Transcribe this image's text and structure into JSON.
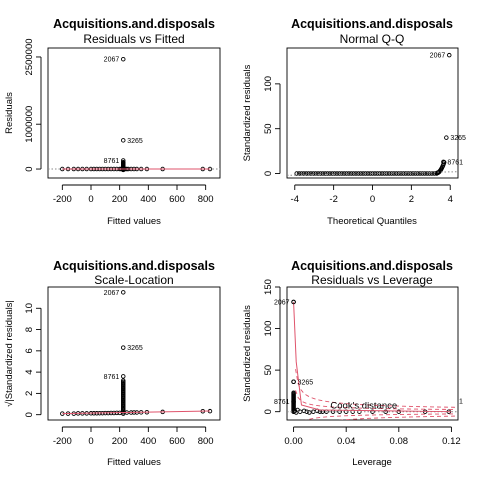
{
  "chart_data": [
    {
      "type": "scatter",
      "title": "Acquisitions.and.disposals",
      "subtitle": "Residuals vs Fitted",
      "xlabel": "Fitted values",
      "ylabel": "Residuals",
      "xlim": [
        -300,
        900
      ],
      "ylim": [
        -200000,
        2700000
      ],
      "xticks": [
        "-200",
        "0",
        "200",
        "400",
        "600",
        "800"
      ],
      "xtick_values": [
        -200,
        0,
        200,
        400,
        600,
        800
      ],
      "yticks": [
        "0",
        "1000000",
        "2500000"
      ],
      "ytick_values": [
        0,
        1000000,
        2500000
      ],
      "grid": false,
      "reference_line": {
        "type": "horizontal",
        "y": 0,
        "style": "dotted",
        "color": "#888888"
      },
      "smooth_color": "#df536b",
      "labeled_points": [
        {
          "label": "2067",
          "x": 225,
          "y": 2450000
        },
        {
          "label": "3265",
          "x": 225,
          "y": 640000
        },
        {
          "label": "8761",
          "x": 225,
          "y": 190000
        }
      ],
      "cluster_x": 225,
      "cluster_y_range": [
        -20000,
        150000
      ],
      "scatter_x": [
        -200,
        -160,
        -120,
        -90,
        -60,
        -30,
        0,
        20,
        40,
        60,
        80,
        100,
        120,
        140,
        160,
        180,
        200,
        210,
        220,
        230,
        240,
        250,
        260,
        280,
        300,
        320,
        350,
        390,
        500,
        780,
        830
      ],
      "scatter_y": [
        0,
        0,
        0,
        0,
        0,
        0,
        0,
        0,
        0,
        0,
        0,
        0,
        0,
        0,
        0,
        0,
        0,
        0,
        0,
        0,
        0,
        0,
        0,
        0,
        0,
        0,
        0,
        0,
        0,
        0,
        0
      ]
    },
    {
      "type": "scatter",
      "title": "Acquisitions.and.disposals",
      "subtitle": "Normal Q-Q",
      "xlabel": "Theoretical Quantiles",
      "ylabel": "Standardized residuals",
      "xlim": [
        -4.4,
        4.4
      ],
      "ylim": [
        -5,
        140
      ],
      "xticks": [
        "-4",
        "-2",
        "0",
        "2",
        "4"
      ],
      "xtick_values": [
        -4,
        -2,
        0,
        2,
        4
      ],
      "yticks": [
        "0",
        "50",
        "100"
      ],
      "ytick_values": [
        0,
        50,
        100
      ],
      "grid": false,
      "reference_line": {
        "type": "diagonal",
        "style": "dotted",
        "color": "#888888"
      },
      "labeled_points": [
        {
          "label": "2067",
          "x": 3.95,
          "y": 132
        },
        {
          "label": "3265",
          "x": 3.8,
          "y": 40
        },
        {
          "label": "8761",
          "x": 3.65,
          "y": 13
        }
      ]
    },
    {
      "type": "scatter",
      "title": "Acquisitions.and.disposals",
      "subtitle": "Scale-Location",
      "xlabel": "Fitted values",
      "ylabel": "√|Standardized residuals|",
      "xlim": [
        -300,
        900
      ],
      "ylim": [
        -0.5,
        12
      ],
      "xticks": [
        "-200",
        "0",
        "200",
        "400",
        "600",
        "800"
      ],
      "xtick_values": [
        -200,
        0,
        200,
        400,
        600,
        800
      ],
      "yticks": [
        "0",
        "2",
        "4",
        "6",
        "8",
        "10"
      ],
      "ytick_values": [
        0,
        2,
        4,
        6,
        8,
        10
      ],
      "grid": false,
      "smooth_color": "#df536b",
      "labeled_points": [
        {
          "label": "2067",
          "x": 225,
          "y": 11.5
        },
        {
          "label": "3265",
          "x": 225,
          "y": 6.3
        },
        {
          "label": "8761",
          "x": 225,
          "y": 3.6
        }
      ],
      "cluster_x": 225,
      "cluster_y_range": [
        0.1,
        3.2
      ],
      "scatter_x": [
        -200,
        -160,
        -120,
        -90,
        -60,
        -30,
        0,
        20,
        40,
        60,
        80,
        100,
        120,
        140,
        160,
        180,
        200,
        250,
        280,
        300,
        320,
        350,
        390,
        500,
        780,
        830
      ],
      "scatter_y": [
        0.1,
        0.1,
        0.1,
        0.12,
        0.12,
        0.12,
        0.13,
        0.13,
        0.13,
        0.14,
        0.14,
        0.15,
        0.15,
        0.16,
        0.16,
        0.17,
        0.17,
        0.2,
        0.2,
        0.21,
        0.21,
        0.22,
        0.23,
        0.26,
        0.32,
        0.33
      ]
    },
    {
      "type": "scatter",
      "title": "Acquisitions.and.disposals",
      "subtitle": "Residuals vs Leverage",
      "xlabel": "Leverage",
      "ylabel": "Standardized residuals",
      "xlim": [
        -0.005,
        0.125
      ],
      "ylim": [
        -10,
        150
      ],
      "xticks": [
        "0.00",
        "0.04",
        "0.08",
        "0.12"
      ],
      "xtick_values": [
        0.0,
        0.04,
        0.08,
        0.12
      ],
      "yticks": [
        "0",
        "50",
        "100",
        "150"
      ],
      "ytick_values": [
        0,
        50,
        100,
        150
      ],
      "grid": false,
      "legend": {
        "label": "Cook's distance",
        "placement": "bottom-center"
      },
      "cook_contour_labels": [
        "1"
      ],
      "labeled_points": [
        {
          "label": "2067",
          "x": 0.0,
          "y": 132
        },
        {
          "label": "3265",
          "x": 0.0,
          "y": 36
        },
        {
          "label": "8761",
          "x": 0.0,
          "y": 12
        }
      ],
      "scatter_x": [
        0.0,
        0.001,
        0.002,
        0.003,
        0.005,
        0.008,
        0.01,
        0.012,
        0.015,
        0.018,
        0.02,
        0.022,
        0.025,
        0.03,
        0.035,
        0.04,
        0.045,
        0.05,
        0.06,
        0.07,
        0.08,
        0.1,
        0.118
      ],
      "scatter_y": [
        0,
        1,
        -1,
        2,
        0,
        1,
        0,
        -1,
        0,
        1,
        0,
        0,
        0,
        0,
        0,
        0,
        0,
        0,
        0,
        0,
        0,
        0,
        0
      ]
    }
  ]
}
